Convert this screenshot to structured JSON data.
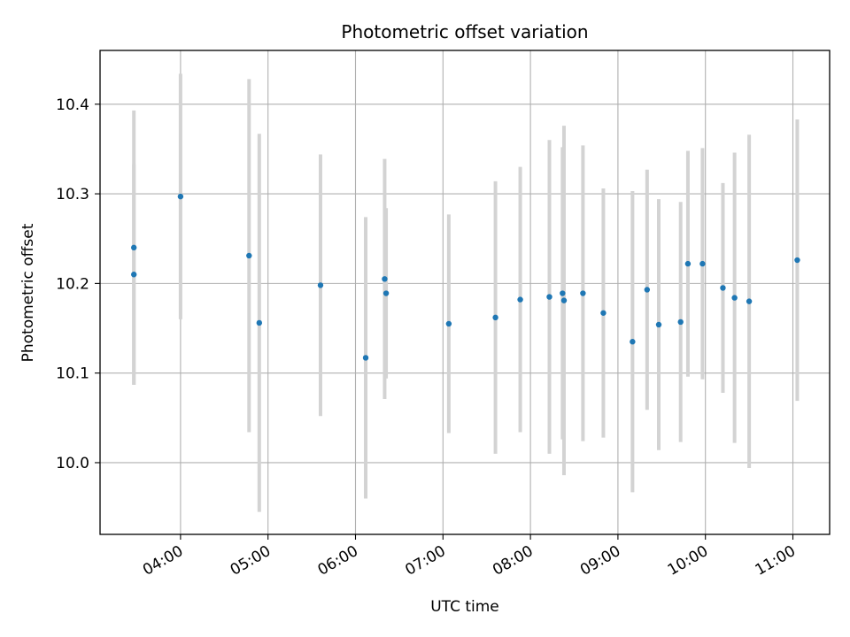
{
  "chart_data": {
    "type": "scatter",
    "title": "Photometric offset variation",
    "xlabel": "UTC time",
    "ylabel": "Photometric offset",
    "x_tick_labels": [
      "04:00",
      "05:00",
      "06:00",
      "07:00",
      "08:00",
      "09:00",
      "10:00",
      "11:00"
    ],
    "x_ticks_hours": [
      4,
      5,
      6,
      7,
      8,
      9,
      10,
      11
    ],
    "y_ticks": [
      10.0,
      10.1,
      10.2,
      10.3,
      10.4
    ],
    "y_tick_labels": [
      "10.0",
      "10.1",
      "10.2",
      "10.3",
      "10.4"
    ],
    "xlim_hours": [
      3.08,
      11.42
    ],
    "ylim": [
      9.92,
      10.46
    ],
    "grid": true,
    "marker_color": "#1f77b4",
    "errorbar_color": "#d3d3d3",
    "points": [
      {
        "time": "03:28",
        "y": 10.21,
        "err": 0.123
      },
      {
        "time": "03:28",
        "y": 10.24,
        "err": 0.153
      },
      {
        "time": "04:00",
        "y": 10.297,
        "err": 0.137
      },
      {
        "time": "04:47",
        "y": 10.231,
        "err": 0.197
      },
      {
        "time": "04:54",
        "y": 10.156,
        "err": 0.211
      },
      {
        "time": "05:36",
        "y": 10.198,
        "err": 0.146
      },
      {
        "time": "06:07",
        "y": 10.117,
        "err": 0.157
      },
      {
        "time": "06:20",
        "y": 10.205,
        "err": 0.134
      },
      {
        "time": "06:21",
        "y": 10.189,
        "err": 0.095
      },
      {
        "time": "07:04",
        "y": 10.155,
        "err": 0.122
      },
      {
        "time": "07:36",
        "y": 10.162,
        "err": 0.152
      },
      {
        "time": "07:53",
        "y": 10.182,
        "err": 0.148
      },
      {
        "time": "08:13",
        "y": 10.185,
        "err": 0.175
      },
      {
        "time": "08:22",
        "y": 10.189,
        "err": 0.163
      },
      {
        "time": "08:23",
        "y": 10.181,
        "err": 0.195
      },
      {
        "time": "08:36",
        "y": 10.189,
        "err": 0.165
      },
      {
        "time": "08:50",
        "y": 10.167,
        "err": 0.139
      },
      {
        "time": "09:10",
        "y": 10.135,
        "err": 0.168
      },
      {
        "time": "09:20",
        "y": 10.193,
        "err": 0.134
      },
      {
        "time": "09:28",
        "y": 10.154,
        "err": 0.14
      },
      {
        "time": "09:43",
        "y": 10.157,
        "err": 0.134
      },
      {
        "time": "09:48",
        "y": 10.222,
        "err": 0.126
      },
      {
        "time": "09:58",
        "y": 10.222,
        "err": 0.129
      },
      {
        "time": "10:12",
        "y": 10.195,
        "err": 0.117
      },
      {
        "time": "10:20",
        "y": 10.184,
        "err": 0.162
      },
      {
        "time": "10:30",
        "y": 10.18,
        "err": 0.186
      },
      {
        "time": "11:03",
        "y": 10.226,
        "err": 0.157
      }
    ]
  }
}
